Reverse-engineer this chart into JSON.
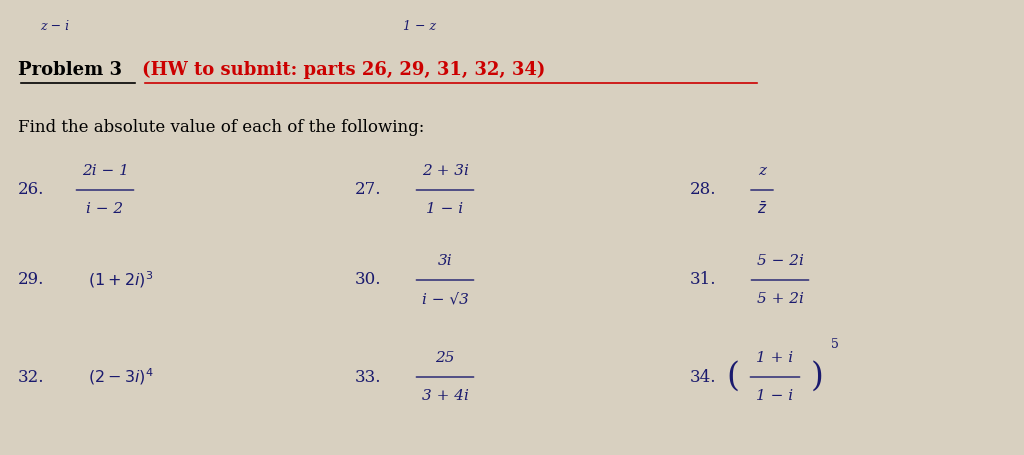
{
  "bg_color": "#d8d0c0",
  "title_black": "Problem 3 ",
  "title_red": "(HW to submit: parts 26, 29, 31, 32, 34)",
  "subtitle": "Find the absolute value of each of the following:",
  "header_left": "z − i",
  "header_mid": "1 − z",
  "text_color": "#1a1a6e",
  "red_color": "#cc0000",
  "font_size_header": 9,
  "font_size_title": 13,
  "font_size_subtitle": 12,
  "font_size_num": 12,
  "font_size_expr": 11
}
